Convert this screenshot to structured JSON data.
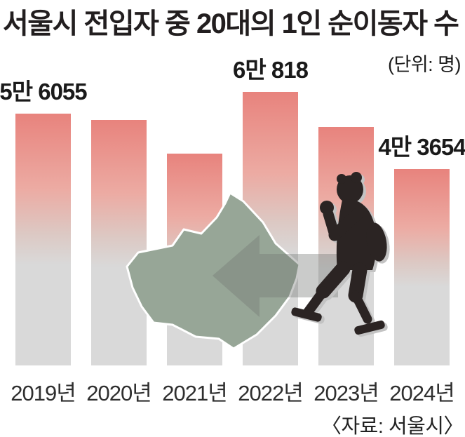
{
  "header": {
    "title": "서울시 전입자 중 20대의 1인 순이동자 수",
    "unit_label": "(단위: 명)"
  },
  "footer": {
    "source_label": "〈자료: 서울시〉"
  },
  "colors": {
    "bar_top": "#e8837d",
    "bar_mid": "#ecaba3",
    "bar_fade": "#dcc9c4",
    "bar_gray": "#d9d9d9",
    "map_fill": "#97a697",
    "map_outline": "#ffffff",
    "arrow_fill": "rgba(115,118,115,0.38)",
    "person_fill": "#2b2423",
    "person_shadow": "#c3c3c3",
    "value_label_color": "#1a1a1a",
    "year_label_color": "#2f2f2f"
  },
  "chart_data": {
    "type": "bar",
    "title": "서울시 전입자 중 20대의 1인 순이동자 수",
    "unit": "명",
    "categories": [
      "2019년",
      "2020년",
      "2021년",
      "2022년",
      "2023년",
      "2024년"
    ],
    "values": [
      56055,
      54600,
      47100,
      60818,
      53000,
      43654
    ],
    "value_labels": [
      "5만 6055",
      null,
      null,
      "6만 818",
      null,
      "4만 3654"
    ],
    "estimated_indices": [
      1,
      2,
      4
    ],
    "ylim": [
      0,
      65000
    ],
    "grid": false,
    "legend": false,
    "xlabel": "",
    "ylabel": ""
  },
  "graphics": {
    "map_name": "seoul-city-map",
    "arrow_name": "left-arrow",
    "person_name": "walking-person"
  }
}
